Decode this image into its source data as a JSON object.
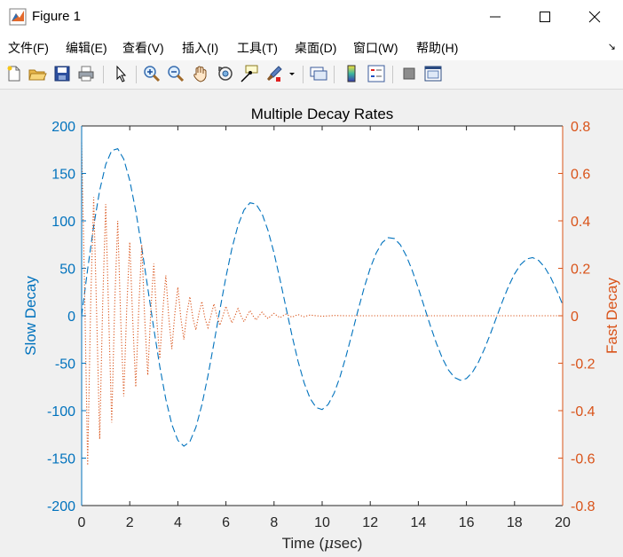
{
  "window": {
    "title": "Figure 1",
    "minimize_icon": "minimize-icon",
    "maximize_icon": "maximize-icon",
    "close_icon": "close-icon"
  },
  "menu": [
    "文件(F)",
    "编辑(E)",
    "查看(V)",
    "插入(I)",
    "工具(T)",
    "桌面(D)",
    "窗口(W)",
    "帮助(H)"
  ],
  "toolbar_icons": [
    "new-figure-icon",
    "open-file-icon",
    "save-icon",
    "print-icon",
    "edit-plot-arrow-icon",
    "zoom-in-icon",
    "zoom-out-icon",
    "pan-hand-icon",
    "rotate-3d-icon",
    "data-cursor-icon",
    "brush-icon",
    "link-plot-icon",
    "insert-colorbar-icon",
    "insert-legend-icon",
    "hide-plot-tools-icon",
    "show-plot-tools-icon"
  ],
  "colors": {
    "slow": "#0072bd",
    "fast": "#d95319",
    "axis_text": "#262626"
  },
  "chart_data": {
    "type": "line",
    "title": "Multiple Decay Rates",
    "xlabel": "Time (μsec)",
    "xlabel_prefix": "Time (",
    "xlabel_mu": "μ",
    "xlabel_suffix": "sec)",
    "ylabel_left": "Slow Decay",
    "ylabel_right": "Fast Decay",
    "xlim": [
      0,
      20
    ],
    "ylim_left": [
      -200,
      200
    ],
    "ylim_right": [
      -0.8,
      0.8
    ],
    "xticks": [
      "0",
      "2",
      "4",
      "6",
      "8",
      "10",
      "12",
      "14",
      "16",
      "18",
      "20"
    ],
    "yticks_left": [
      "200",
      "150",
      "100",
      "50",
      "0",
      "-50",
      "-100",
      "-150",
      "-200"
    ],
    "yticks_right": [
      "0.8",
      "0.6",
      "0.4",
      "0.2",
      "0",
      "-0.2",
      "-0.4",
      "-0.6",
      "-0.8"
    ],
    "series": [
      {
        "name": "Slow Decay",
        "axis": "left",
        "style": "dashed",
        "x": [
          0,
          0.25,
          0.5,
          0.75,
          1,
          1.25,
          1.5,
          1.75,
          2,
          2.25,
          2.5,
          2.75,
          3,
          3.25,
          3.5,
          3.75,
          4,
          4.25,
          4.5,
          4.75,
          5,
          5.25,
          5.5,
          5.75,
          6,
          6.25,
          6.5,
          6.75,
          7,
          7.25,
          7.5,
          7.75,
          8,
          8.25,
          8.5,
          8.75,
          9,
          9.25,
          9.5,
          9.75,
          10,
          10.25,
          10.5,
          10.75,
          11,
          11.25,
          11.5,
          11.75,
          12,
          12.25,
          12.5,
          12.75,
          13,
          13.25,
          13.5,
          13.75,
          14,
          14.25,
          14.5,
          14.75,
          15,
          15.25,
          15.5,
          15.75,
          16,
          16.25,
          16.5,
          16.75,
          17,
          17.25,
          17.5,
          17.75,
          18,
          18.25,
          18.5,
          18.75,
          19,
          19.25,
          19.5,
          19.75,
          20
        ],
        "values": [
          0,
          49.2,
          94.5,
          132.1,
          159.3,
          174.1,
          176.0,
          165.1,
          142.6,
          110.5,
          71.7,
          29.1,
          -13.5,
          -53.6,
          -88.0,
          -114.5,
          -131.3,
          -137.4,
          -132.7,
          -117.6,
          -93.8,
          -63.4,
          -29.0,
          6.6,
          40.9,
          71.1,
          95.1,
          111.4,
          119.0,
          117.6,
          107.6,
          89.8,
          66.0,
          38.0,
          8.2,
          -21.2,
          -48.1,
          -70.6,
          -87.2,
          -96.7,
          -98.8,
          -93.5,
          -81.5,
          -63.8,
          -42.0,
          -18.0,
          6.6,
          29.8,
          50.2,
          66.3,
          77.2,
          82.3,
          81.4,
          74.8,
          63.1,
          47.4,
          28.9,
          9.2,
          -10.6,
          -29.0,
          -44.9,
          -57.1,
          -65.0,
          -68.0,
          -66.1,
          -59.5,
          -48.8,
          -34.9,
          -18.8,
          -1.6,
          15.4,
          31.0,
          44.1,
          53.9,
          59.8,
          61.3,
          58.3,
          51.2,
          40.5,
          27.0,
          11.7
        ]
      },
      {
        "name": "Fast Decay",
        "axis": "right",
        "style": "dotted",
        "x": [
          0,
          0.125,
          0.25,
          0.375,
          0.5,
          0.625,
          0.75,
          0.875,
          1,
          1.125,
          1.25,
          1.375,
          1.5,
          1.625,
          1.75,
          1.875,
          2,
          2.125,
          2.25,
          2.375,
          2.5,
          2.625,
          2.75,
          2.875,
          3,
          3.125,
          3.25,
          3.375,
          3.5,
          3.625,
          3.75,
          3.875,
          4,
          4.125,
          4.25,
          4.375,
          4.5,
          4.625,
          4.75,
          4.875,
          5,
          5.125,
          5.25,
          5.375,
          5.5,
          5.625,
          5.75,
          5.875,
          6,
          6.125,
          6.25,
          6.375,
          6.5,
          6.625,
          6.75,
          6.875,
          7,
          7.125,
          7.25,
          7.375,
          7.5,
          7.625,
          7.75,
          7.875,
          8,
          8.125,
          8.25,
          8.375,
          8.5,
          8.625,
          8.75,
          8.875,
          9,
          9.125,
          9.25,
          9.375,
          9.5,
          9.75,
          10,
          10.5,
          11,
          12,
          13,
          14,
          15,
          16,
          17,
          18,
          19,
          20
        ],
        "values": [
          0.73,
          0.1,
          -0.63,
          0.05,
          0.5,
          0.0,
          -0.52,
          0.05,
          0.47,
          0.0,
          -0.45,
          0.05,
          0.4,
          -0.02,
          -0.34,
          0.03,
          0.31,
          -0.02,
          -0.3,
          0.03,
          0.3,
          -0.02,
          -0.25,
          0.02,
          0.22,
          -0.02,
          -0.18,
          0.02,
          0.17,
          -0.01,
          -0.14,
          0.01,
          0.12,
          -0.01,
          -0.1,
          0.01,
          0.08,
          -0.01,
          -0.06,
          0.01,
          0.06,
          -0.01,
          -0.05,
          0.0,
          0.05,
          0.0,
          -0.04,
          0.0,
          0.04,
          0.0,
          -0.03,
          0.0,
          0.03,
          0.0,
          -0.025,
          0.0,
          0.022,
          0.0,
          -0.018,
          0.0,
          0.015,
          0.0,
          -0.012,
          0.0,
          0.01,
          0.0,
          -0.008,
          0.0,
          0.007,
          0.0,
          -0.006,
          0.0,
          0.005,
          0.0,
          -0.004,
          0.0,
          0.003,
          0.0,
          -0.002,
          0.001,
          0.0,
          0.0,
          0.0,
          0.0,
          0.0,
          0.0,
          0.0,
          0.0,
          0.0,
          0.0
        ]
      }
    ]
  }
}
